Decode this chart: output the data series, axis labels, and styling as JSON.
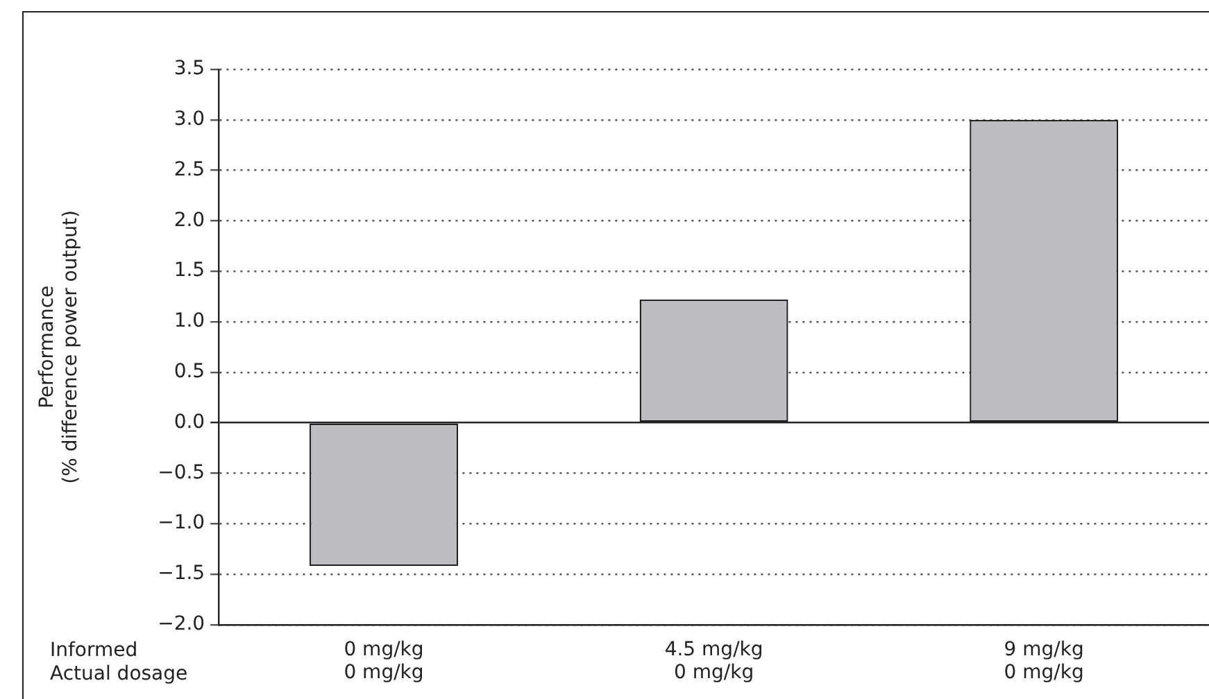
{
  "chart_data": {
    "type": "bar",
    "ylabel": "Performance\n(% difference power output)",
    "categories": [
      "0 mg/kg\n0 mg/kg",
      "4.5 mg/kg\n0 mg/kg",
      "9 mg/kg\n0 mg/kg"
    ],
    "values": [
      -1.42,
      1.22,
      3.0
    ],
    "color": "#bebec0",
    "ylim": [
      -2.0,
      3.5
    ],
    "yticks": [
      {
        "value": -2,
        "label": "−2.0"
      },
      {
        "value": -1.5,
        "label": "−1.5"
      },
      {
        "value": -1,
        "label": "−1.0"
      },
      {
        "value": -0.5,
        "label": "−0.5"
      },
      {
        "value": 0,
        "label": "0.0"
      },
      {
        "value": 0.5,
        "label": "0.5"
      },
      {
        "value": 1,
        "label": "1.0"
      },
      {
        "value": 1.5,
        "label": "1.5"
      },
      {
        "value": 2,
        "label": "2.0"
      },
      {
        "value": 2.5,
        "label": "2.5"
      },
      {
        "value": 3,
        "label": "3.0"
      },
      {
        "value": 3.5,
        "label": "3.5"
      }
    ],
    "grid": "y",
    "annotations": [
      "Informed\nActual dosage"
    ]
  }
}
